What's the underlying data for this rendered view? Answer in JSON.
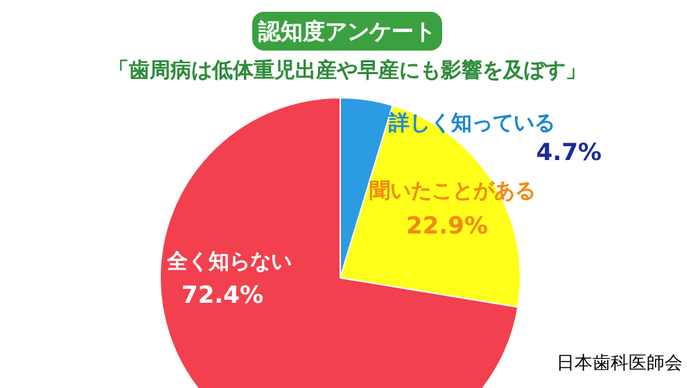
{
  "chart_data": {
    "type": "pie",
    "title": "認知度アンケート",
    "subtitle": "「歯周病は低体重児出産や早産にも影響を及ぼす」",
    "categories": [
      "詳しく知っている",
      "聞いたことがある",
      "全く知らない"
    ],
    "values": [
      4.7,
      22.9,
      72.4
    ],
    "colors": [
      "#2b9be3",
      "#ffff1a",
      "#f2404e"
    ],
    "value_labels": [
      "4.7%",
      "22.9%",
      "72.4%"
    ],
    "annotations": [
      "日本歯科医師会"
    ]
  }
}
